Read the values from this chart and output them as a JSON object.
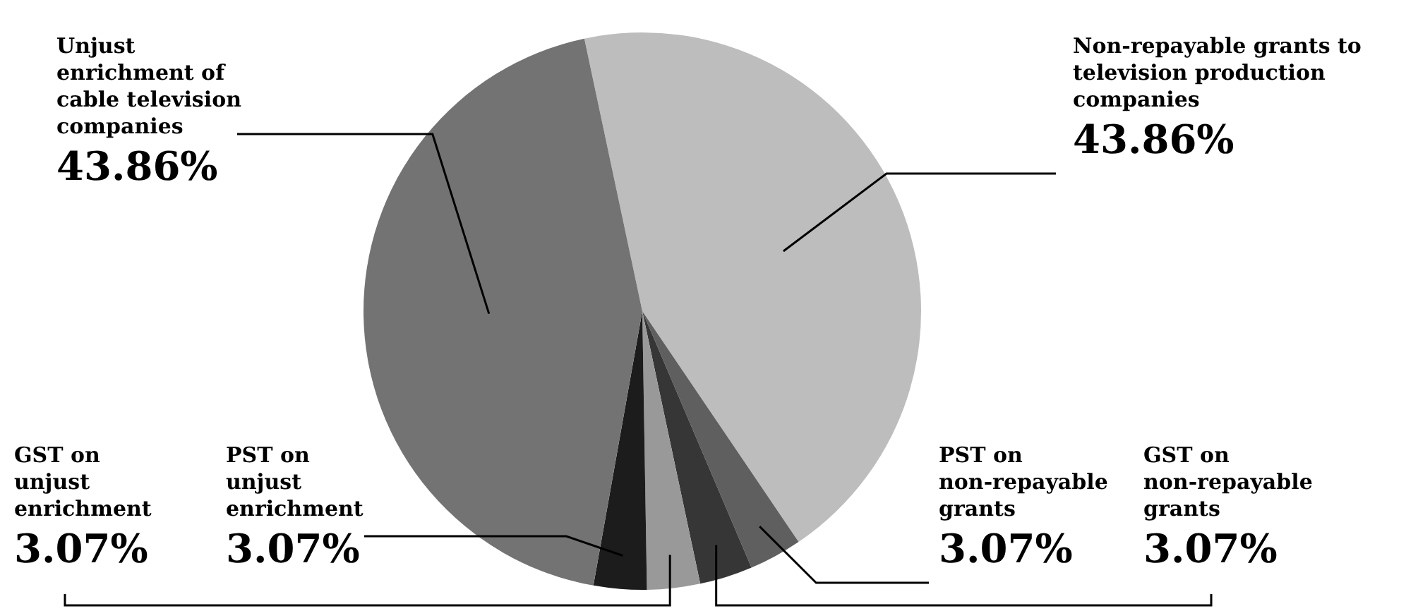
{
  "chart_data": {
    "type": "pie",
    "categories": [
      "Non-repayable grants to television production companies",
      "PST on non-repayable grants",
      "GST on non-repayable grants",
      "GST on unjust enrichment",
      "PST on unjust enrichment",
      "Unjust enrichment of cable television companies"
    ],
    "values": [
      43.86,
      3.07,
      3.07,
      3.07,
      3.07,
      43.86
    ],
    "value_labels": [
      "43.86%",
      "3.07%",
      "3.07%",
      "3.07%",
      "3.07%",
      "43.86%"
    ],
    "colors": [
      "#bdbdbd",
      "#5f5f5f",
      "#363636",
      "#999999",
      "#1c1c1c",
      "#737373"
    ],
    "legend": false
  }
}
